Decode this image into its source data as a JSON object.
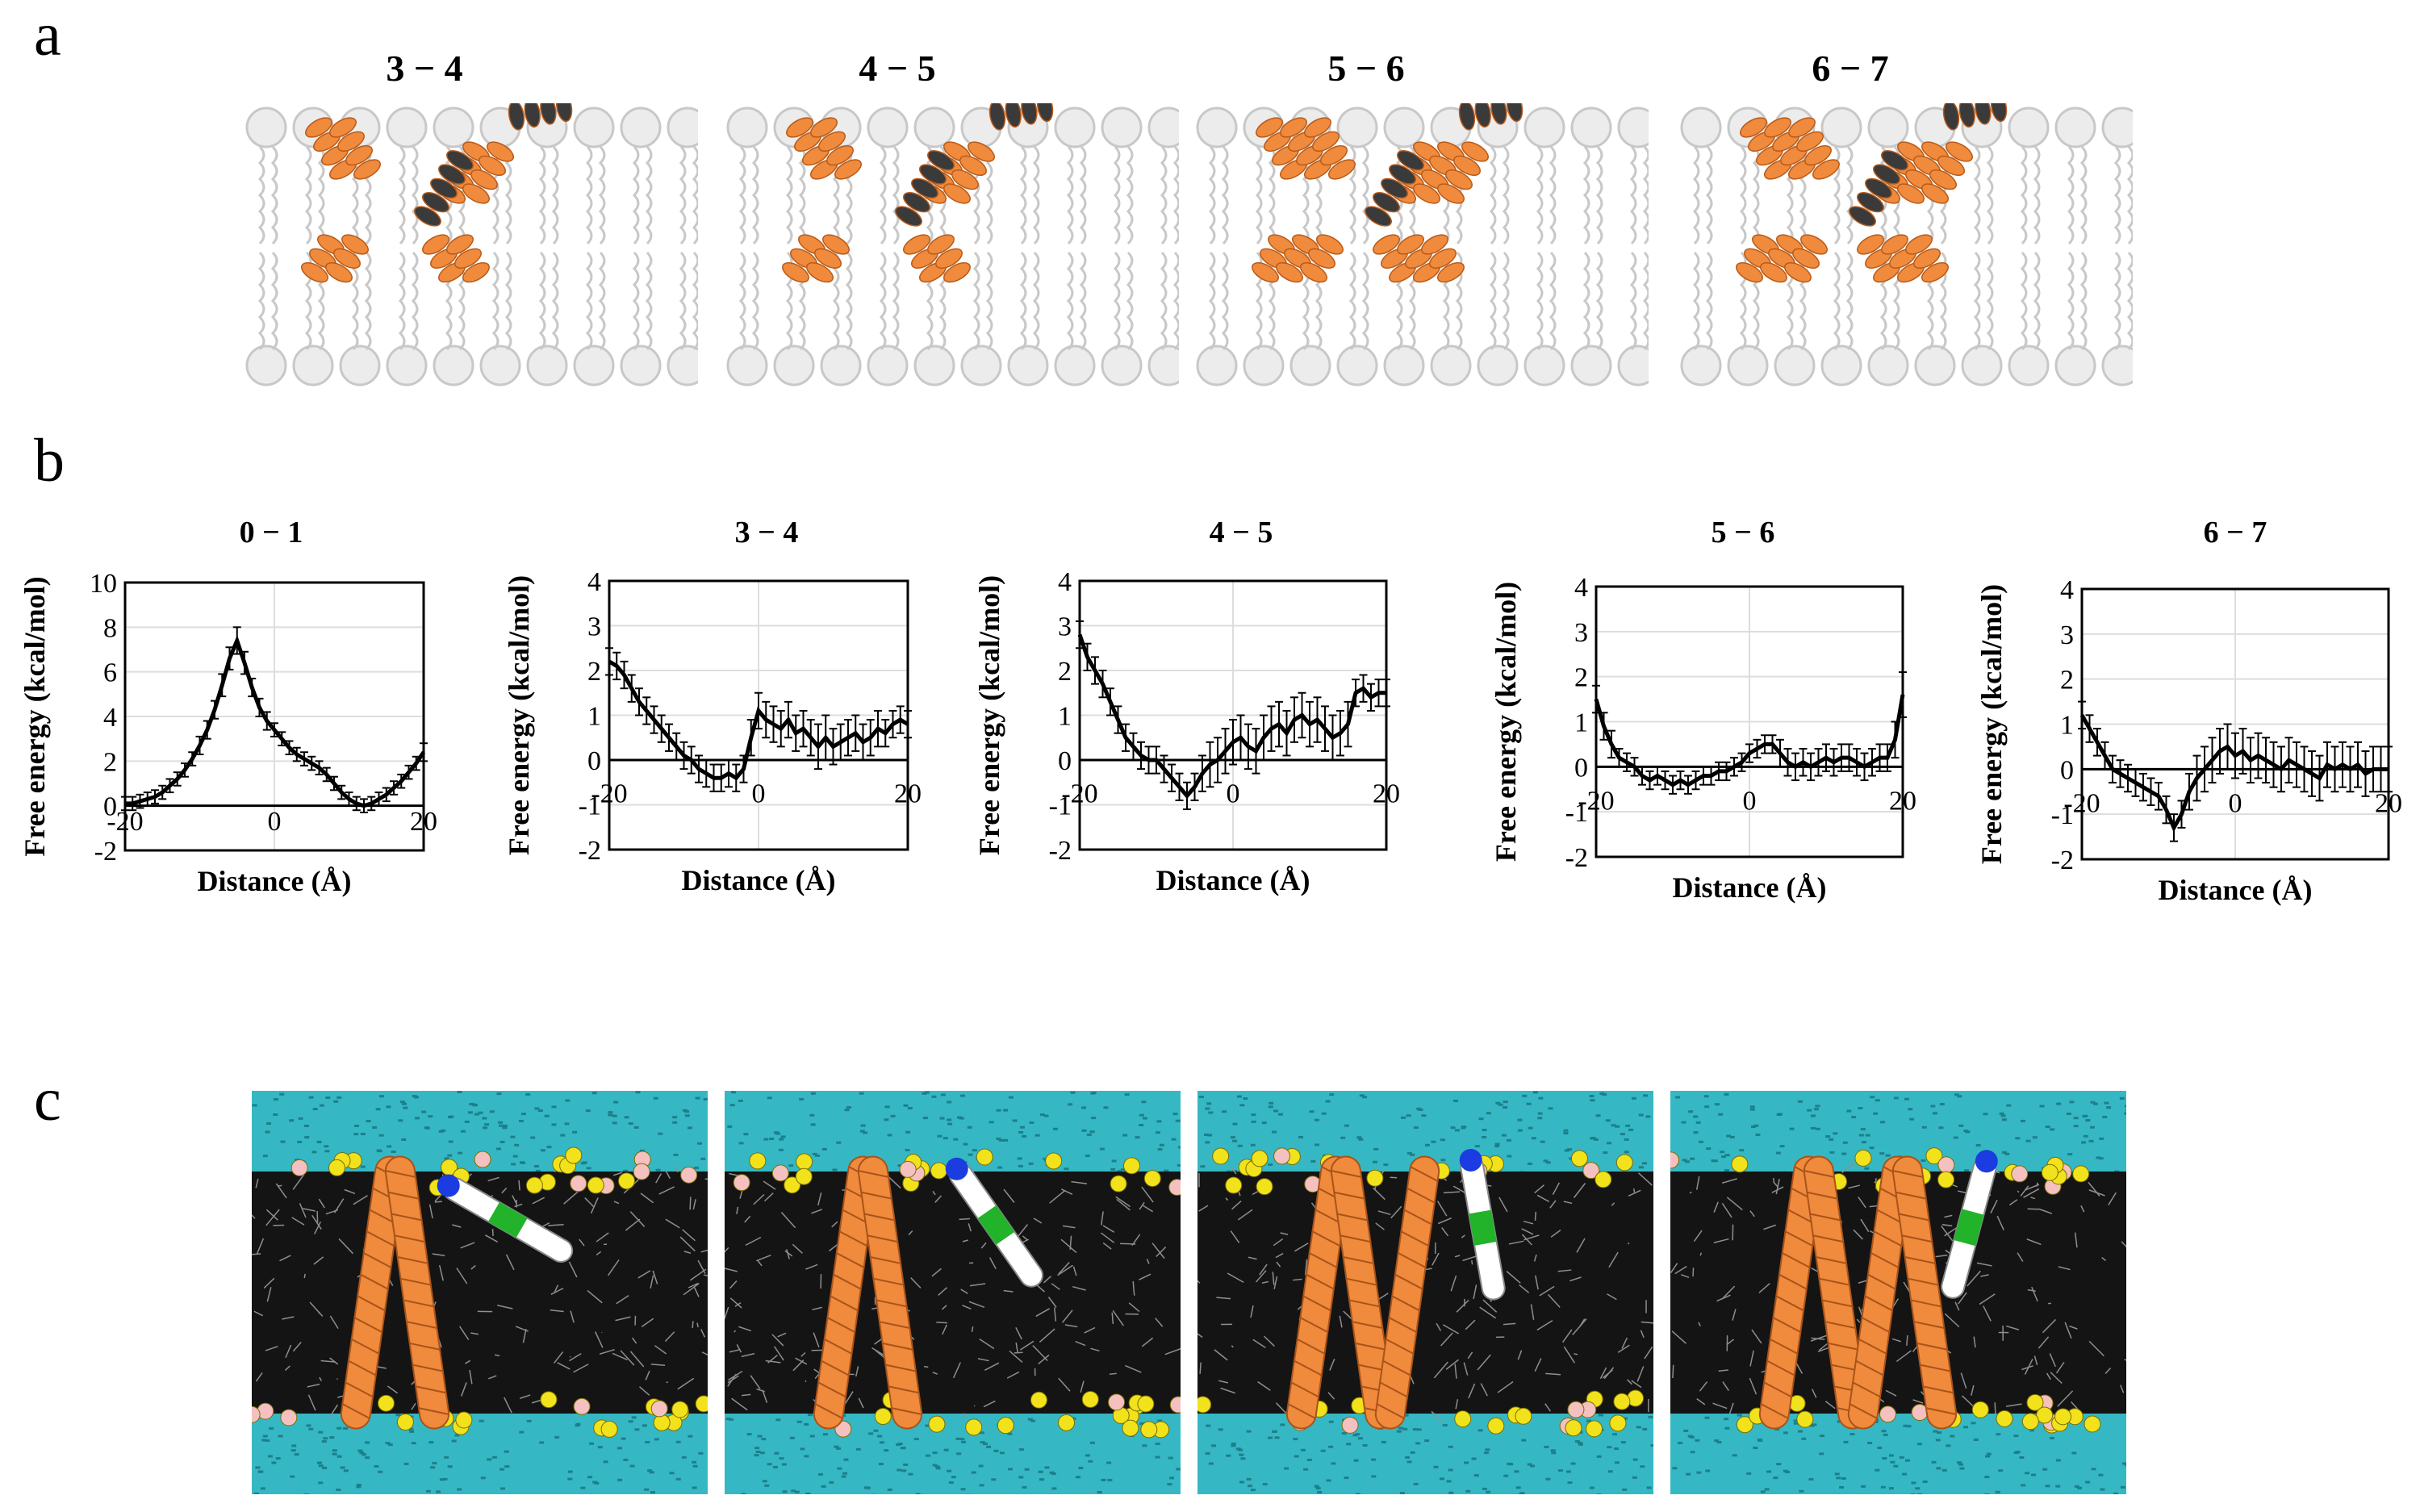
{
  "figure": {
    "panel_labels": {
      "a": "a",
      "b": "b",
      "c": "c"
    },
    "panel_a": {
      "titles": [
        "3 − 4",
        "4 − 5",
        "5 − 6",
        "6 − 7"
      ]
    },
    "panel_c": {
      "snapshot_count": 4
    },
    "colors": {
      "helix_orange": "#f08a3c",
      "helix_dark": "#3a3a3a",
      "lipid_gray": "#c8c8c8",
      "water_cyan": "#35b8c4",
      "head_yellow": "#f2e21c",
      "head_pink": "#f4c0c0",
      "peptide_green": "#22b32a",
      "peptide_blue": "#1a3ce0"
    }
  },
  "chart_data": [
    {
      "type": "line",
      "title": "0 − 1",
      "xlabel": "Distance (Å)",
      "ylabel": "Free energy (kcal/mol)",
      "xlim": [
        -20,
        20
      ],
      "ylim": [
        -2,
        10
      ],
      "xticks": [
        "-20",
        "0",
        "20"
      ],
      "yticks": [
        "-2",
        "0",
        "2",
        "4",
        "6",
        "8",
        "10"
      ],
      "x": [
        -20,
        -19,
        -18,
        -17,
        -16,
        -15,
        -14,
        -13,
        -12,
        -11,
        -10,
        -9,
        -8,
        -7,
        -6,
        -5,
        -4,
        -3,
        -2,
        -1,
        0,
        1,
        2,
        3,
        4,
        5,
        6,
        7,
        8,
        9,
        10,
        11,
        12,
        13,
        14,
        15,
        16,
        17,
        18,
        19,
        20
      ],
      "y": [
        0.1,
        0.1,
        0.2,
        0.3,
        0.4,
        0.6,
        0.9,
        1.2,
        1.6,
        2.1,
        2.7,
        3.4,
        4.3,
        5.4,
        6.6,
        7.4,
        6.4,
        5.3,
        4.4,
        3.8,
        3.4,
        3.0,
        2.6,
        2.3,
        2.1,
        1.9,
        1.7,
        1.4,
        1.0,
        0.6,
        0.3,
        0.1,
        0.0,
        0.1,
        0.3,
        0.5,
        0.8,
        1.1,
        1.5,
        1.9,
        2.4
      ],
      "err": [
        0.3,
        0.3,
        0.3,
        0.3,
        0.3,
        0.3,
        0.3,
        0.3,
        0.3,
        0.3,
        0.4,
        0.4,
        0.4,
        0.5,
        0.5,
        0.6,
        0.5,
        0.4,
        0.4,
        0.4,
        0.3,
        0.3,
        0.3,
        0.3,
        0.3,
        0.3,
        0.3,
        0.3,
        0.3,
        0.3,
        0.3,
        0.3,
        0.3,
        0.3,
        0.3,
        0.3,
        0.3,
        0.3,
        0.3,
        0.3,
        0.4
      ]
    },
    {
      "type": "line",
      "title": "3 − 4",
      "xlabel": "Distance (Å)",
      "ylabel": "Free energy (kcal/mol)",
      "xlim": [
        -20,
        20
      ],
      "ylim": [
        -2,
        4
      ],
      "xticks": [
        "-20",
        "0",
        "20"
      ],
      "yticks": [
        "-2",
        "-1",
        "0",
        "1",
        "2",
        "3",
        "4"
      ],
      "x": [
        -20,
        -19,
        -18,
        -17,
        -16,
        -15,
        -14,
        -13,
        -12,
        -11,
        -10,
        -9,
        -8,
        -7,
        -6,
        -5,
        -4,
        -3,
        -2,
        -1,
        0,
        1,
        2,
        3,
        4,
        5,
        6,
        7,
        8,
        9,
        10,
        11,
        12,
        13,
        14,
        15,
        16,
        17,
        18,
        19,
        20
      ],
      "y": [
        2.2,
        2.1,
        1.9,
        1.6,
        1.3,
        1.1,
        0.9,
        0.7,
        0.5,
        0.3,
        0.1,
        0.0,
        -0.2,
        -0.3,
        -0.4,
        -0.4,
        -0.3,
        -0.4,
        -0.2,
        0.5,
        1.1,
        0.9,
        0.8,
        0.7,
        0.9,
        0.6,
        0.7,
        0.5,
        0.3,
        0.5,
        0.3,
        0.4,
        0.5,
        0.6,
        0.4,
        0.5,
        0.7,
        0.6,
        0.8,
        0.9,
        0.8
      ],
      "err": [
        0.3,
        0.3,
        0.3,
        0.3,
        0.3,
        0.3,
        0.3,
        0.3,
        0.3,
        0.3,
        0.3,
        0.3,
        0.3,
        0.3,
        0.3,
        0.3,
        0.3,
        0.3,
        0.3,
        0.4,
        0.4,
        0.4,
        0.4,
        0.4,
        0.4,
        0.4,
        0.4,
        0.4,
        0.5,
        0.5,
        0.4,
        0.4,
        0.4,
        0.4,
        0.4,
        0.4,
        0.4,
        0.3,
        0.3,
        0.3,
        0.3
      ]
    },
    {
      "type": "line",
      "title": "4 − 5",
      "xlabel": "Distance (Å)",
      "ylabel": "Free energy (kcal/mol)",
      "xlim": [
        -20,
        20
      ],
      "ylim": [
        -2,
        4
      ],
      "xticks": [
        "-20",
        "0",
        "20"
      ],
      "yticks": [
        "-2",
        "-1",
        "0",
        "1",
        "2",
        "3",
        "4"
      ],
      "x": [
        -20,
        -19,
        -18,
        -17,
        -16,
        -15,
        -14,
        -13,
        -12,
        -11,
        -10,
        -9,
        -8,
        -7,
        -6,
        -5,
        -4,
        -3,
        -2,
        -1,
        0,
        1,
        2,
        3,
        4,
        5,
        6,
        7,
        8,
        9,
        10,
        11,
        12,
        13,
        14,
        15,
        16,
        17,
        18,
        19,
        20
      ],
      "y": [
        2.8,
        2.3,
        2.0,
        1.7,
        1.3,
        0.9,
        0.5,
        0.3,
        0.1,
        0.0,
        0.0,
        -0.2,
        -0.4,
        -0.6,
        -0.8,
        -0.6,
        -0.3,
        -0.1,
        0.0,
        0.2,
        0.4,
        0.5,
        0.3,
        0.2,
        0.5,
        0.7,
        0.8,
        0.6,
        0.9,
        1.0,
        0.8,
        0.9,
        0.7,
        0.5,
        0.6,
        0.8,
        1.5,
        1.6,
        1.4,
        1.5,
        1.5
      ],
      "err": [
        0.3,
        0.3,
        0.3,
        0.3,
        0.3,
        0.3,
        0.3,
        0.3,
        0.3,
        0.3,
        0.3,
        0.3,
        0.3,
        0.3,
        0.3,
        0.3,
        0.4,
        0.5,
        0.5,
        0.5,
        0.5,
        0.5,
        0.5,
        0.5,
        0.5,
        0.5,
        0.5,
        0.5,
        0.5,
        0.5,
        0.5,
        0.5,
        0.5,
        0.5,
        0.5,
        0.5,
        0.3,
        0.3,
        0.3,
        0.3,
        0.3
      ]
    },
    {
      "type": "line",
      "title": "5 − 6",
      "xlabel": "Distance (Å)",
      "ylabel": "Free energy (kcal/mol)",
      "xlim": [
        -20,
        20
      ],
      "ylim": [
        -2,
        4
      ],
      "xticks": [
        "-20",
        "0",
        "20"
      ],
      "yticks": [
        "-2",
        "-1",
        "0",
        "1",
        "2",
        "3",
        "4"
      ],
      "x": [
        -20,
        -19,
        -18,
        -17,
        -16,
        -15,
        -14,
        -13,
        -12,
        -11,
        -10,
        -9,
        -8,
        -7,
        -6,
        -5,
        -4,
        -3,
        -2,
        -1,
        0,
        1,
        2,
        3,
        4,
        5,
        6,
        7,
        8,
        9,
        10,
        11,
        12,
        13,
        14,
        15,
        16,
        17,
        18,
        19,
        20
      ],
      "y": [
        1.5,
        0.9,
        0.5,
        0.2,
        0.1,
        0.0,
        -0.2,
        -0.3,
        -0.2,
        -0.3,
        -0.4,
        -0.3,
        -0.4,
        -0.3,
        -0.2,
        -0.2,
        -0.1,
        -0.1,
        0.0,
        0.1,
        0.3,
        0.4,
        0.5,
        0.5,
        0.3,
        0.1,
        0.0,
        0.1,
        0.0,
        0.1,
        0.2,
        0.1,
        0.2,
        0.2,
        0.1,
        0.0,
        0.1,
        0.2,
        0.2,
        0.6,
        1.6
      ],
      "err": [
        0.3,
        0.3,
        0.3,
        0.2,
        0.2,
        0.2,
        0.2,
        0.2,
        0.2,
        0.2,
        0.2,
        0.2,
        0.2,
        0.2,
        0.2,
        0.2,
        0.2,
        0.2,
        0.2,
        0.2,
        0.2,
        0.2,
        0.2,
        0.2,
        0.3,
        0.3,
        0.3,
        0.3,
        0.3,
        0.3,
        0.3,
        0.3,
        0.3,
        0.3,
        0.3,
        0.3,
        0.3,
        0.3,
        0.3,
        0.4,
        0.5
      ]
    },
    {
      "type": "line",
      "title": "6 − 7",
      "xlabel": "Distance (Å)",
      "ylabel": "Free energy (kcal/mol)",
      "xlim": [
        -20,
        20
      ],
      "ylim": [
        -2,
        4
      ],
      "xticks": [
        "-20",
        "0",
        "20"
      ],
      "yticks": [
        "-2",
        "-1",
        "0",
        "1",
        "2",
        "3",
        "4"
      ],
      "x": [
        -20,
        -19,
        -18,
        -17,
        -16,
        -15,
        -14,
        -13,
        -12,
        -11,
        -10,
        -9,
        -8,
        -7,
        -6,
        -5,
        -4,
        -3,
        -2,
        -1,
        0,
        1,
        2,
        3,
        4,
        5,
        6,
        7,
        8,
        9,
        10,
        11,
        12,
        13,
        14,
        15,
        16,
        17,
        18,
        19,
        20
      ],
      "y": [
        1.2,
        0.9,
        0.6,
        0.3,
        0.0,
        -0.1,
        -0.2,
        -0.3,
        -0.4,
        -0.5,
        -0.6,
        -0.9,
        -1.3,
        -1.0,
        -0.5,
        -0.2,
        0.0,
        0.2,
        0.4,
        0.5,
        0.3,
        0.4,
        0.2,
        0.3,
        0.2,
        0.1,
        0.0,
        0.2,
        0.1,
        0.0,
        -0.1,
        -0.2,
        0.1,
        0.0,
        0.1,
        0.0,
        0.1,
        -0.1,
        0.0,
        0.0,
        0.0
      ],
      "err": [
        0.3,
        0.3,
        0.3,
        0.3,
        0.3,
        0.3,
        0.3,
        0.3,
        0.3,
        0.3,
        0.3,
        0.3,
        0.3,
        0.3,
        0.4,
        0.5,
        0.5,
        0.5,
        0.5,
        0.5,
        0.5,
        0.5,
        0.5,
        0.5,
        0.5,
        0.5,
        0.5,
        0.5,
        0.5,
        0.5,
        0.5,
        0.5,
        0.5,
        0.5,
        0.5,
        0.5,
        0.5,
        0.5,
        0.5,
        0.5,
        0.5
      ]
    }
  ]
}
